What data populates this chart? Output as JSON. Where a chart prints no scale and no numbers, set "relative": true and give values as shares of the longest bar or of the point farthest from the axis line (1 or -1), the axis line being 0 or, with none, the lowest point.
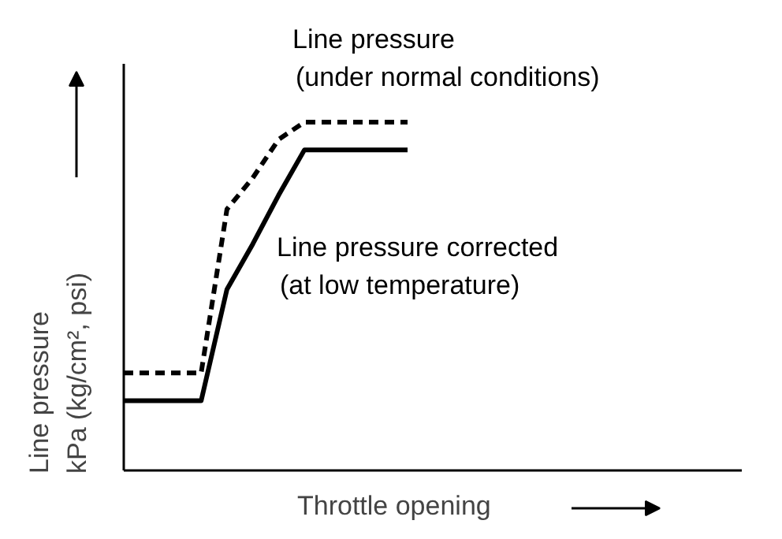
{
  "chart_data": {
    "type": "line",
    "relative": true,
    "xlabel": "Throttle opening",
    "ylabel": "Line pressure\nkPa (kg/cm², psi)",
    "categories": [
      null,
      null,
      null,
      null,
      null,
      null,
      null,
      null,
      null,
      null,
      null,
      null
    ],
    "series": [
      {
        "name": "Line pressure\n(under normal conditions)",
        "color": "#000000",
        "line_style": "dashed",
        "values": [
          0.28,
          0.28,
          0.28,
          0.28,
          0.75,
          0.84,
          0.95,
          1,
          1,
          1,
          1,
          1
        ]
      },
      {
        "name": "Line pressure corrected\n(at low temperature)",
        "color": "#000000",
        "line_style": "solid",
        "values": [
          0.2,
          0.2,
          0.2,
          0.2,
          0.52,
          0.65,
          0.79,
          0.92,
          0.92,
          0.92,
          0.92,
          0.92
        ]
      }
    ],
    "grid": false,
    "legend": false,
    "marker": "none"
  }
}
